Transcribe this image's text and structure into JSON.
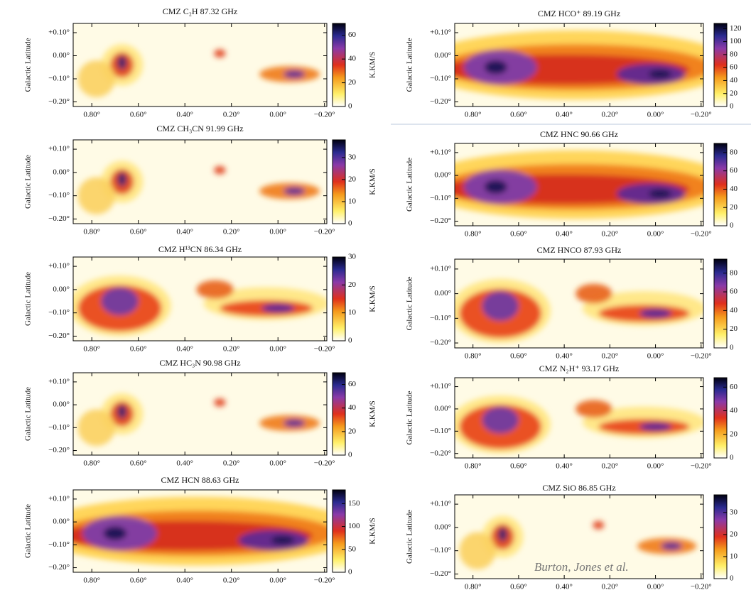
{
  "credit": "Burton, Jones et al.",
  "chart_data": [
    {
      "type": "image",
      "title": "CMZ C₂H 87.32 GHz",
      "ylabel": "Galactic Latitude",
      "xlim": [
        0.88,
        -0.21
      ],
      "ylim": [
        -0.22,
        0.14
      ],
      "xticks": [
        {
          "value": 0.8,
          "label": "0.80°"
        },
        {
          "value": 0.6,
          "label": "0.60°"
        },
        {
          "value": 0.4,
          "label": "0.40°"
        },
        {
          "value": 0.2,
          "label": "0.20°"
        },
        {
          "value": 0,
          "label": "0.00°"
        },
        {
          "value": -0.2,
          "label": "−0.20°"
        }
      ],
      "yticks": [
        {
          "value": 0.1,
          "label": "+0.10°"
        },
        {
          "value": 0,
          "label": "0.00°"
        },
        {
          "value": -0.1,
          "label": "−0.10°"
        },
        {
          "value": -0.2,
          "label": "−0.20°"
        }
      ],
      "colorbar": {
        "label": "K.KM/S",
        "lim": [
          0,
          70
        ],
        "ticks": [
          0,
          20,
          40,
          60
        ]
      }
    },
    {
      "type": "image",
      "title": "CMZ CH₃CN 91.99 GHz",
      "ylabel": "Galactic Latitude",
      "xlim": [
        0.88,
        -0.21
      ],
      "ylim": [
        -0.22,
        0.14
      ],
      "xticks": [
        {
          "value": 0.8,
          "label": "0.80°"
        },
        {
          "value": 0.6,
          "label": "0.60°"
        },
        {
          "value": 0.4,
          "label": "0.40°"
        },
        {
          "value": 0.2,
          "label": "0.20°"
        },
        {
          "value": 0,
          "label": "0.00°"
        },
        {
          "value": -0.2,
          "label": "−0.20°"
        }
      ],
      "yticks": [
        {
          "value": 0.1,
          "label": "+0.10°"
        },
        {
          "value": 0,
          "label": "0.00°"
        },
        {
          "value": -0.1,
          "label": "−0.10°"
        },
        {
          "value": -0.2,
          "label": "−0.20°"
        }
      ],
      "colorbar": {
        "label": "K.KM/S",
        "lim": [
          0,
          38
        ],
        "ticks": [
          0,
          10,
          20,
          30
        ]
      }
    },
    {
      "type": "image",
      "title": "CMZ H¹³CN 86.34 GHz",
      "ylabel": "Galactic Latitude",
      "xlim": [
        0.88,
        -0.21
      ],
      "ylim": [
        -0.22,
        0.14
      ],
      "xticks": [
        {
          "value": 0.8,
          "label": "0.80°"
        },
        {
          "value": 0.6,
          "label": "0.60°"
        },
        {
          "value": 0.4,
          "label": "0.40°"
        },
        {
          "value": 0.2,
          "label": "0.20°"
        },
        {
          "value": 0,
          "label": "0.00°"
        },
        {
          "value": -0.2,
          "label": "−0.20°"
        }
      ],
      "yticks": [
        {
          "value": 0.1,
          "label": "+0.10°"
        },
        {
          "value": 0,
          "label": "0.00°"
        },
        {
          "value": -0.1,
          "label": "−0.10°"
        },
        {
          "value": -0.2,
          "label": "−0.20°"
        }
      ],
      "colorbar": {
        "label": "K.KM/S",
        "lim": [
          0,
          30
        ],
        "ticks": [
          0,
          10,
          20,
          30
        ]
      }
    },
    {
      "type": "image",
      "title": "CMZ HC₃N 90.98 GHz",
      "ylabel": "Galactic Latitude",
      "xlim": [
        0.88,
        -0.21
      ],
      "ylim": [
        -0.22,
        0.14
      ],
      "xticks": [
        {
          "value": 0.8,
          "label": "0.80°"
        },
        {
          "value": 0.6,
          "label": "0.60°"
        },
        {
          "value": 0.4,
          "label": "0.40°"
        },
        {
          "value": 0.2,
          "label": "0.20°"
        },
        {
          "value": 0,
          "label": "0.00°"
        },
        {
          "value": -0.2,
          "label": "−0.20°"
        }
      ],
      "yticks": [
        {
          "value": 0.1,
          "label": "+0.10°"
        },
        {
          "value": 0,
          "label": "0.00°"
        },
        {
          "value": -0.1,
          "label": "−0.10°"
        },
        {
          "value": -0.2,
          "label": "−0.20°"
        }
      ],
      "colorbar": {
        "label": "K.KM/S",
        "lim": [
          0,
          70
        ],
        "ticks": [
          0,
          20,
          40,
          60
        ]
      }
    },
    {
      "type": "image",
      "title": "CMZ HCN 88.63 GHz",
      "ylabel": "Galactic Latitude",
      "xlim": [
        0.88,
        -0.21
      ],
      "ylim": [
        -0.22,
        0.14
      ],
      "xticks": [
        {
          "value": 0.8,
          "label": "0.80°"
        },
        {
          "value": 0.6,
          "label": "0.60°"
        },
        {
          "value": 0.4,
          "label": "0.40°"
        },
        {
          "value": 0.2,
          "label": "0.20°"
        },
        {
          "value": 0,
          "label": "0.00°"
        },
        {
          "value": -0.2,
          "label": "−0.20°"
        }
      ],
      "yticks": [
        {
          "value": 0.1,
          "label": "+0.10°"
        },
        {
          "value": 0,
          "label": "0.00°"
        },
        {
          "value": -0.1,
          "label": "−0.10°"
        },
        {
          "value": -0.2,
          "label": "−0.20°"
        }
      ],
      "colorbar": {
        "label": "K.KM/S",
        "lim": [
          0,
          180
        ],
        "ticks": [
          0,
          50,
          100,
          150
        ]
      }
    },
    {
      "type": "image",
      "title": "CMZ HCO⁺ 89.19 GHz",
      "ylabel": "Galactic Latitude",
      "xlim": [
        0.88,
        -0.21
      ],
      "ylim": [
        -0.22,
        0.14
      ],
      "xticks": [
        {
          "value": 0.8,
          "label": "0.80°"
        },
        {
          "value": 0.6,
          "label": "0.60°"
        },
        {
          "value": 0.4,
          "label": "0.40°"
        },
        {
          "value": 0.2,
          "label": "0.20°"
        },
        {
          "value": 0,
          "label": "0.00°"
        },
        {
          "value": -0.2,
          "label": "−0.20°"
        }
      ],
      "yticks": [
        {
          "value": 0.1,
          "label": "+0.10°"
        },
        {
          "value": 0,
          "label": "0.00°"
        },
        {
          "value": -0.1,
          "label": "−0.10°"
        },
        {
          "value": -0.2,
          "label": "−0.20°"
        }
      ],
      "colorbar": {
        "lim": [
          0,
          128
        ],
        "ticks": [
          0,
          20,
          40,
          60,
          80,
          100,
          120
        ]
      }
    },
    {
      "type": "image",
      "title": "CMZ HNC 90.66 GHz",
      "ylabel": "Galactic Latitude",
      "xlim": [
        0.88,
        -0.21
      ],
      "ylim": [
        -0.22,
        0.14
      ],
      "xticks": [
        {
          "value": 0.8,
          "label": "0.80°"
        },
        {
          "value": 0.6,
          "label": "0.60°"
        },
        {
          "value": 0.4,
          "label": "0.40°"
        },
        {
          "value": 0.2,
          "label": "0.20°"
        },
        {
          "value": 0,
          "label": "0.00°"
        },
        {
          "value": -0.2,
          "label": "−0.20°"
        }
      ],
      "yticks": [
        {
          "value": 0.1,
          "label": "+0.10°"
        },
        {
          "value": 0,
          "label": "0.00°"
        },
        {
          "value": -0.1,
          "label": "−0.10°"
        },
        {
          "value": -0.2,
          "label": "−0.20°"
        }
      ],
      "colorbar": {
        "lim": [
          0,
          90
        ],
        "ticks": [
          0,
          20,
          40,
          60,
          80
        ]
      }
    },
    {
      "type": "image",
      "title": "CMZ HNCO 87.93 GHz",
      "ylabel": "Galactic Latitude",
      "xlim": [
        0.88,
        -0.21
      ],
      "ylim": [
        -0.22,
        0.14
      ],
      "xticks": [
        {
          "value": 0.8,
          "label": "0.80°"
        },
        {
          "value": 0.6,
          "label": "0.60°"
        },
        {
          "value": 0.4,
          "label": "0.40°"
        },
        {
          "value": 0.2,
          "label": "0.20°"
        },
        {
          "value": 0,
          "label": "0.00°"
        },
        {
          "value": -0.2,
          "label": "−0.20°"
        }
      ],
      "yticks": [
        {
          "value": 0.1,
          "label": "+0.10°"
        },
        {
          "value": 0,
          "label": "0.00°"
        },
        {
          "value": -0.1,
          "label": "−0.10°"
        },
        {
          "value": -0.2,
          "label": "−0.20°"
        }
      ],
      "colorbar": {
        "lim": [
          0,
          95
        ],
        "ticks": [
          0,
          20,
          40,
          60,
          80
        ]
      }
    },
    {
      "type": "image",
      "title": "CMZ N₂H⁺ 93.17 GHz",
      "ylabel": "Galactic Latitude",
      "xlim": [
        0.88,
        -0.21
      ],
      "ylim": [
        -0.22,
        0.14
      ],
      "xticks": [
        {
          "value": 0.8,
          "label": "0.80°"
        },
        {
          "value": 0.6,
          "label": "0.60°"
        },
        {
          "value": 0.4,
          "label": "0.40°"
        },
        {
          "value": 0.2,
          "label": "0.20°"
        },
        {
          "value": 0,
          "label": "0.00°"
        },
        {
          "value": -0.2,
          "label": "−0.20°"
        }
      ],
      "yticks": [
        {
          "value": 0.1,
          "label": "+0.10°"
        },
        {
          "value": 0,
          "label": "0.00°"
        },
        {
          "value": -0.1,
          "label": "−0.10°"
        },
        {
          "value": -0.2,
          "label": "−0.20°"
        }
      ],
      "colorbar": {
        "lim": [
          0,
          68
        ],
        "ticks": [
          0,
          20,
          40,
          60
        ]
      }
    },
    {
      "type": "image",
      "title": "CMZ SiO 86.85 GHz",
      "ylabel": "Galactic Latitude",
      "xlim": [
        0.88,
        -0.21
      ],
      "ylim": [
        -0.22,
        0.14
      ],
      "xticks": [
        {
          "value": 0.8,
          "label": "0.80°"
        },
        {
          "value": 0.6,
          "label": "0.60°"
        },
        {
          "value": 0.4,
          "label": "0.40°"
        },
        {
          "value": 0.2,
          "label": "0.20°"
        },
        {
          "value": 0,
          "label": "0.00°"
        },
        {
          "value": -0.2,
          "label": "−0.20°"
        }
      ],
      "yticks": [
        {
          "value": 0.1,
          "label": "+0.10°"
        },
        {
          "value": 0,
          "label": "0.00°"
        },
        {
          "value": -0.1,
          "label": "−0.10°"
        },
        {
          "value": -0.2,
          "label": "−0.20°"
        }
      ],
      "colorbar": {
        "lim": [
          0,
          38
        ],
        "ticks": [
          0,
          10,
          20,
          30
        ]
      }
    }
  ]
}
